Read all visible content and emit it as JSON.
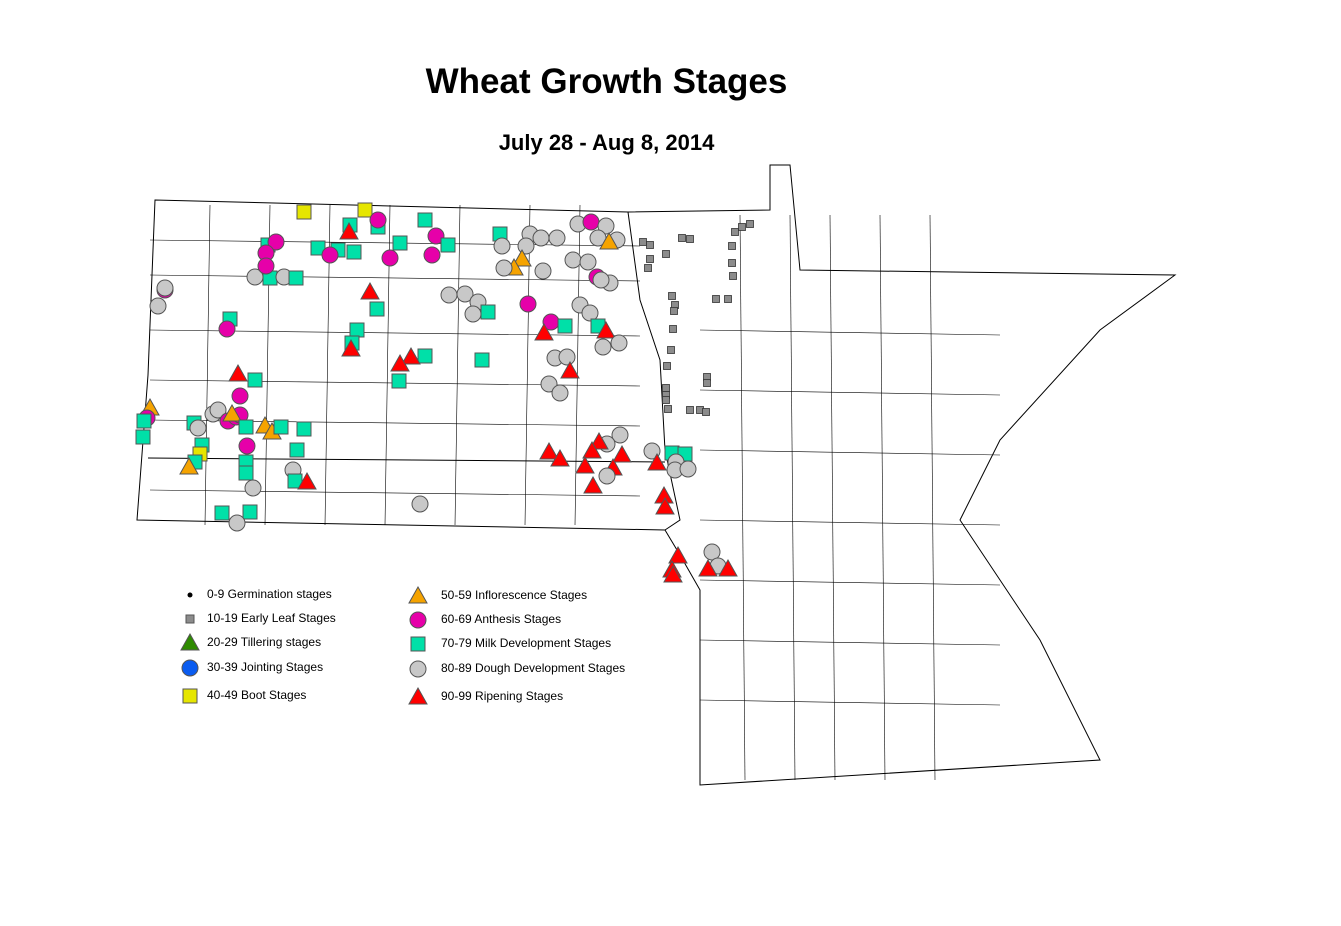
{
  "title": "Wheat Growth Stages",
  "subtitle": "July 28 - Aug 8, 2014",
  "legend": [
    {
      "label": "0-9 Germination stages",
      "shape": "dot",
      "color": "#000000"
    },
    {
      "label": "10-19 Early Leaf Stages",
      "shape": "square-small",
      "color": "#8c8c8c"
    },
    {
      "label": "20-29 Tillering stages",
      "shape": "triangle",
      "color": "#2e8b00"
    },
    {
      "label": "30-39 Jointing Stages",
      "shape": "circle",
      "color": "#0a5cf0"
    },
    {
      "label": "40-49 Boot Stages",
      "shape": "square",
      "color": "#e6e600"
    },
    {
      "label": "50-59 Inflorescence Stages",
      "shape": "triangle",
      "color": "#f5a300"
    },
    {
      "label": "60-69 Anthesis Stages",
      "shape": "circle",
      "color": "#e600a9"
    },
    {
      "label": "70-79 Milk Development Stages",
      "shape": "square",
      "color": "#00e0a8"
    },
    {
      "label": "80-89 Dough Development Stages",
      "shape": "circle",
      "color": "#c8c8c8"
    },
    {
      "label": "90-99 Ripening Stages",
      "shape": "triangle",
      "color": "#ff0000"
    }
  ]
}
